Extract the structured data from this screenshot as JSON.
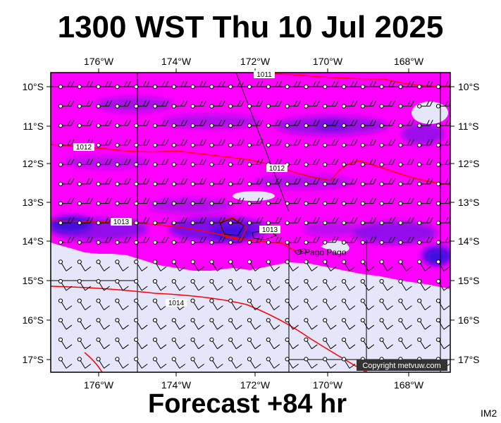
{
  "title": "1300 WST Thu 10 Jul 2025",
  "footer": "Forecast +84 hr",
  "product_id": "IM2",
  "copyright": "Copyright metvuw.com",
  "place": "Pago Pago",
  "map": {
    "lon_ticks": [
      "176°W",
      "174°W",
      "172°W",
      "170°W",
      "168°W"
    ],
    "lat_ticks": [
      "10°S",
      "11°S",
      "12°S",
      "13°S",
      "14°S",
      "15°S",
      "16°S",
      "17°S"
    ],
    "isobars": [
      "1011",
      "1012",
      "1012",
      "1013",
      "1013",
      "1014"
    ]
  },
  "colors": {
    "heavy_rain": "#3a10e0",
    "moderate_rain": "#8a10e8",
    "light_rain": "#ff00ff",
    "dry": "#e6e6fa",
    "isobar": "#ff0000"
  }
}
